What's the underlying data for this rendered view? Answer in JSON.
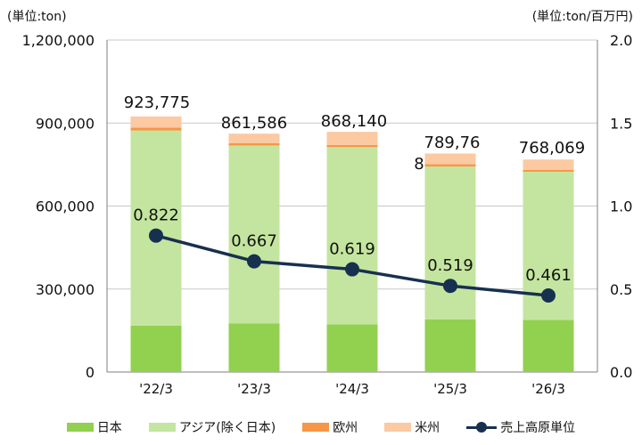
{
  "units": {
    "left": "(単位:ton)",
    "right": "(単位:ton/百万円)"
  },
  "legend": [
    {
      "key": "japan",
      "label": "日本"
    },
    {
      "key": "asia",
      "label": "アジア(除く日本)"
    },
    {
      "key": "europe",
      "label": "欧州"
    },
    {
      "key": "america",
      "label": "米州"
    },
    {
      "key": "unit",
      "label": "売上高原単位"
    }
  ],
  "colors": {
    "japan": "#92d050",
    "asia": "#c4e59f",
    "europe": "#f79646",
    "america": "#fbc9a2",
    "line": "#17304f",
    "grid": "#c8c8c8",
    "axis": "#7f7f7f"
  },
  "chart_data": {
    "type": "bar",
    "stacked": true,
    "categories": [
      "'22/3",
      "'23/3",
      "'24/3",
      "'25/3",
      "'26/3"
    ],
    "series": [
      {
        "name": "日本",
        "key": "japan",
        "values": [
          168000,
          176000,
          172000,
          190000,
          188000
        ]
      },
      {
        "name": "アジア(除く日本)",
        "key": "asia",
        "values": [
          705000,
          643000,
          641000,
          553000,
          536000
        ]
      },
      {
        "name": "欧州",
        "key": "europe",
        "values": [
          10000,
          8000,
          8000,
          8000,
          7000
        ]
      },
      {
        "name": "米州",
        "key": "america",
        "values": [
          40775,
          34586,
          47140,
          38768,
          37069
        ]
      }
    ],
    "totals": [
      "923,775",
      "861,586",
      "868,140",
      "789,768",
      "768,069"
    ],
    "line": {
      "name": "売上高原単位",
      "values": [
        0.822,
        0.667,
        0.619,
        0.519,
        0.461
      ],
      "labels": [
        "0.822",
        "0.667",
        "0.619",
        "0.519",
        "0.461"
      ]
    },
    "y_left": {
      "min": 0,
      "max": 1200000,
      "ticks": [
        0,
        300000,
        600000,
        900000,
        1200000
      ],
      "tick_labels": [
        "0",
        "300,000",
        "600,000",
        "900,000",
        "1,200,000"
      ]
    },
    "y_right": {
      "min": 0,
      "max": 2.0,
      "ticks": [
        0,
        0.5,
        1.0,
        1.5,
        2.0
      ],
      "tick_labels": [
        "0.0",
        "0.5",
        "1.0",
        "1.5",
        "2.0"
      ]
    },
    "grid": true,
    "legend_position": "bottom"
  }
}
